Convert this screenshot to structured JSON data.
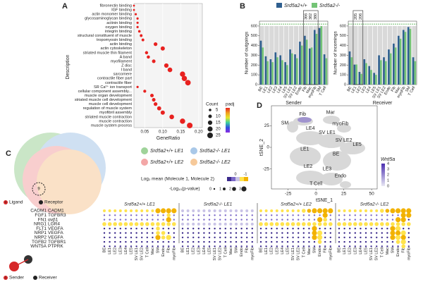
{
  "panel_labels": [
    "A",
    "B",
    "C",
    "D"
  ],
  "chart_data": [
    {
      "type": "dot",
      "ylabel": "Description",
      "xlabel": "GeneRatio",
      "categories": [
        "fibronectin binding",
        "IGF binding",
        "actin monomer binding",
        "glycosaminoglycan binding",
        "actinin binding",
        "oxygen binding",
        "integrin binding",
        "structural constituent of muscle",
        "tropomyosin binding",
        "actin binding",
        "actin cytoskeleton",
        "striated muscle thin filament",
        "A band",
        "myofilament",
        "Z disc",
        "I band",
        "sarcomere",
        "contractile fiber part",
        "contractile fiber",
        "SR Ca²⁺ ion transport",
        "cellular component assembly...",
        "muscle organ development",
        "striated muscle cell development",
        "muscle cell development",
        "regulation of muscle system",
        "myofibril assembly",
        "striated muscle contraction",
        "muscle contraction",
        "muscle system process"
      ],
      "category_colors": [
        "#4a86c8",
        "#4a86c8",
        "#4a86c8",
        "#4a86c8",
        "#4a86c8",
        "#4a86c8",
        "#4a86c8",
        "#4a86c8",
        "#4a86c8",
        "#4a86c8",
        "#3aa335",
        "#3aa335",
        "#3aa335",
        "#3aa335",
        "#3aa335",
        "#3aa335",
        "#3aa335",
        "#3aa335",
        "#3aa335",
        "#e0302a",
        "#e0302a",
        "#e0302a",
        "#e0302a",
        "#e0302a",
        "#e0302a",
        "#e0302a",
        "#e0302a",
        "#e0302a",
        "#e0302a"
      ],
      "values": [
        0.02,
        0.02,
        0.025,
        0.03,
        0.03,
        0.03,
        0.035,
        0.04,
        0.045,
        0.08,
        0.1,
        0.055,
        0.06,
        0.075,
        0.11,
        0.12,
        0.155,
        0.16,
        0.17,
        0.03,
        0.05,
        0.07,
        0.075,
        0.08,
        0.09,
        0.1,
        0.125,
        0.155,
        0.175
      ],
      "counts": [
        3,
        3,
        4,
        4,
        4,
        4,
        5,
        6,
        6,
        11,
        14,
        8,
        8,
        10,
        15,
        17,
        22,
        22,
        24,
        4,
        7,
        10,
        10,
        11,
        13,
        14,
        17,
        22,
        25
      ],
      "color": "#e8211f",
      "xlim": [
        0.02,
        0.21
      ],
      "xticks": [
        0.05,
        {
          "value": 0.1,
          "label": "0.10"
        },
        0.15,
        {
          "value": 0.2,
          "label": "0.20"
        }
      ],
      "size_legend": {
        "title": "Count",
        "values": [
          5,
          10,
          15,
          20,
          25
        ]
      },
      "color_legend": {
        "title": "padj"
      }
    },
    {
      "type": "bar",
      "xlabel": "Sender",
      "ylabel": "Number of outgoings",
      "categories": [
        "BE",
        "LE1",
        "LE2",
        "LE3",
        "LE4",
        "LE5",
        "SV LE1",
        "SV LE2",
        "Endo",
        "Fib",
        "Mac",
        "myoFib",
        "SM",
        "T Cell"
      ],
      "series": [
        {
          "name": "Srd5a2+/+",
          "color": "#2f5f8f",
          "values": [
            450,
            290,
            260,
            330,
            300,
            230,
            360,
            310,
            440,
            500,
            370,
            560,
            580,
            310
          ]
        },
        {
          "name": "Srd5a2-/-",
          "color": "#74c476",
          "values": [
            380,
            240,
            230,
            280,
            250,
            200,
            320,
            270,
            400,
            460,
            380,
            520,
            600,
            270
          ]
        }
      ],
      "ylim": [
        0,
        650
      ],
      "yticks": [
        0,
        100,
        200,
        300,
        400,
        500,
        600
      ],
      "annotations": [
        "366",
        "382",
        "380"
      ]
    },
    {
      "type": "bar",
      "xlabel": "Receiver",
      "ylabel": "Number of incomings",
      "categories": [
        "BE",
        "LE1",
        "LE2",
        "LE3",
        "LE4",
        "LE5",
        "SV LE1",
        "SV LE2",
        "Endo",
        "Fib",
        "Mac",
        "myoFib",
        "SM",
        "T Cell"
      ],
      "series": [
        {
          "color": "#2f5f8f",
          "values": [
            340,
            205,
            130,
            260,
            190,
            120,
            300,
            280,
            360,
            420,
            500,
            560,
            590,
            280
          ]
        },
        {
          "color": "#74c476",
          "values": [
            280,
            206,
            110,
            220,
            150,
            100,
            250,
            240,
            320,
            380,
            470,
            540,
            570,
            240
          ]
        }
      ],
      "ylim": [
        0,
        650
      ],
      "yticks": [
        0,
        100,
        200,
        300,
        400,
        500,
        600
      ],
      "annotations": [
        "205",
        "206"
      ]
    },
    {
      "type": "tsne",
      "xlabel": "tSNE_1",
      "ylabel": "tSNE_2",
      "xlim": [
        -40,
        55
      ],
      "ylim": [
        -48,
        48
      ],
      "xticks": [
        -25,
        0,
        25,
        50
      ],
      "yticks": [
        -25,
        0,
        25
      ],
      "clusters": [
        "Fib",
        "Mar",
        "myoFib",
        "SM",
        "LE4",
        "SV LE1",
        "SV LE2",
        "LE5",
        "LE1",
        "BE",
        "LE2",
        "LE3",
        "Endo",
        "T Cell"
      ],
      "colorbar": {
        "title": "Wnt5a",
        "ticks": [
          0,
          1,
          2,
          3,
          4
        ]
      }
    }
  ],
  "venn": {
    "labels": [
      "Srd5a2+/+ LE1",
      "Srd5a2-/- LE1",
      "Srd5a2+/+ LE2",
      "Srd5a2-/- LE2"
    ],
    "colors": [
      "#9fd39a",
      "#a9c8e8",
      "#f3a7a7",
      "#f6c99a"
    ],
    "annotation": "9"
  },
  "dotplot": {
    "ligands": [
      "CADM1",
      "FGF1",
      "FN1",
      "NRG1",
      "FLT1",
      "NRP1",
      "NRP2",
      "TGFB2",
      "WNT5A"
    ],
    "receptors": [
      "CADM1",
      "TGFBR3",
      "αvβ1",
      "LGR4",
      "VEGFA",
      "VEGFA",
      "VEGFA",
      "TGFBR1",
      "PTPRK"
    ],
    "columns": [
      "BE",
      "LE1",
      "LE2",
      "LE3",
      "LE4",
      "LE5",
      "SV LE1",
      "SV LE2",
      "T Cell",
      "Mac",
      "SM",
      "Endo",
      "Fib",
      "myoFib"
    ],
    "color_legend": {
      "title": "Log₂ mean (Molecule 1, Molecule 2)",
      "ticks": [
        0,
        -1
      ],
      "colors": [
        "#3b2a8c",
        "#7b68c8",
        "#c9c3e6",
        "#ffe34d",
        "#f2b200"
      ]
    },
    "size_legend": {
      "title": "-Log₁₀(p-value)",
      "ticks": [
        0,
        1,
        2,
        3
      ]
    },
    "groups": [
      {
        "sizes": [
          "11111111113333",
          "00000000000020",
          "00000000000030",
          "22222222222222",
          "00000000002000",
          "00000000002200",
          "00000000003230",
          "00000000000000",
          "00000000000000"
        ],
        "levels": [
          "33333333334444",
          "11111111111131",
          "11111111111141",
          "33333333333333",
          "00000000003000",
          "00000000003300",
          "00000000004330",
          "00000000000000",
          "00000000000000"
        ]
      },
      {
        "sizes": [
          "11111111111111",
          "00000000000000",
          "00000000000000",
          "11111111111111",
          "00000000000000",
          "00000000000000",
          "00000000000000",
          "00000000000000",
          "00000000000000"
        ],
        "levels": [
          "22222222222222",
          "11111111111111",
          "11111111111111",
          "22222222222222",
          "00000000000000",
          "00000000000000",
          "00000000000000",
          "00000000000000",
          "00000000000000"
        ]
      },
      {
        "sizes": [
          "11111111223333",
          "00000000000030",
          "00000000000320",
          "22222222222222",
          "00000000003000",
          "00000000003300",
          "00000000003300",
          "00000000000200",
          "00000000000000"
        ],
        "levels": [
          "33333333344444",
          "11111111111141",
          "11111111111431",
          "33333333333333",
          "00000000004000",
          "00000000004300",
          "00000000004300",
          "00000000000300",
          "00000000000000"
        ]
      },
      {
        "sizes": [
          "11111111223333",
          "00000000000033",
          "00000000000330",
          "22222222222222",
          "00000000003300",
          "00000000003330",
          "00000000003330",
          "00000000000230",
          "00000000000020"
        ],
        "levels": [
          "33333333344444",
          "11111111111144",
          "11111111111440",
          "33333333333333",
          "00000000004300",
          "00000000004430",
          "00000000004340",
          "00000000000330",
          "00000000000030"
        ]
      }
    ]
  },
  "legend_e": {
    "ligand": "Ligand",
    "receptor": "Receptor",
    "sender": "Sender",
    "receiver": "Receiver",
    "one": "1",
    "two": "2"
  }
}
